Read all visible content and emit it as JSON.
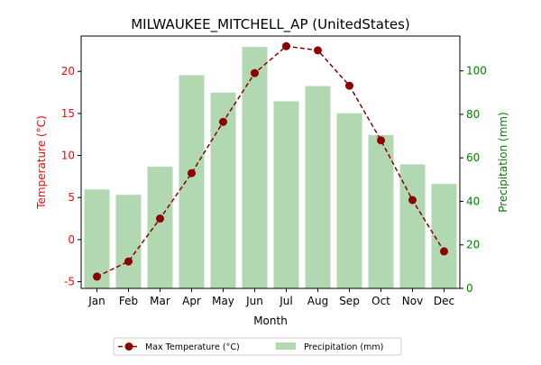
{
  "chart_data": {
    "type": "bar+line",
    "title": "MILWAUKEE_MITCHELL_AP (UnitedStates)",
    "xlabel": "Month",
    "ylabel_left": "Temperature (°C)",
    "ylabel_right": "Precipitation (mm)",
    "categories": [
      "Jan",
      "Feb",
      "Mar",
      "Apr",
      "May",
      "Jun",
      "Jul",
      "Aug",
      "Sep",
      "Oct",
      "Nov",
      "Dec"
    ],
    "temperature_axis": {
      "ylim": [
        -5.8,
        24.2
      ],
      "ticks": [
        -5,
        0,
        5,
        10,
        15,
        20
      ]
    },
    "precipitation_axis": {
      "ylim": [
        0,
        116
      ],
      "ticks": [
        0,
        20,
        40,
        60,
        80,
        100
      ]
    },
    "series": [
      {
        "name": "Max Temperature (°C)",
        "kind": "line",
        "axis": "left",
        "color": "#8b0000",
        "values": [
          -4.4,
          -2.6,
          2.5,
          7.9,
          14.0,
          19.8,
          23.0,
          22.5,
          18.3,
          11.8,
          4.7,
          -1.4
        ]
      },
      {
        "name": "Precipitation (mm)",
        "kind": "bar",
        "axis": "right",
        "color": "#b2d8b2",
        "values": [
          45.5,
          43.0,
          56.0,
          98.0,
          90.0,
          111.0,
          86.0,
          93.0,
          80.5,
          70.5,
          57.0,
          48.0
        ]
      }
    ],
    "grid": false,
    "legend_position": "bottom-center",
    "colors": {
      "left_axis": "#ff0000",
      "right_axis": "#008000"
    }
  }
}
